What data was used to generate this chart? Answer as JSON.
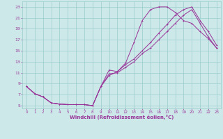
{
  "xlabel": "Windchill (Refroidissement éolien,°C)",
  "xlim": [
    -0.5,
    23.5
  ],
  "ylim": [
    4.5,
    24
  ],
  "xticks": [
    0,
    1,
    2,
    3,
    4,
    5,
    6,
    7,
    8,
    9,
    10,
    11,
    12,
    13,
    14,
    15,
    16,
    17,
    18,
    19,
    20,
    21,
    22,
    23
  ],
  "yticks": [
    5,
    7,
    9,
    11,
    13,
    15,
    17,
    19,
    21,
    23
  ],
  "bg_color": "#cce8e8",
  "grid_color": "#99cccc",
  "line_color": "#993399",
  "curve1_x": [
    0,
    1,
    2,
    3,
    4,
    5,
    6,
    7,
    8,
    9,
    10,
    11,
    12,
    13,
    14,
    15,
    16,
    17,
    18,
    19,
    20,
    21,
    22,
    23
  ],
  "curve1_y": [
    8.5,
    7.2,
    6.6,
    5.5,
    5.3,
    5.2,
    5.2,
    5.2,
    5.0,
    8.5,
    11.5,
    11.2,
    12.8,
    16.5,
    20.5,
    22.5,
    23.0,
    23.0,
    22.0,
    20.5,
    20.0,
    18.5,
    17.2,
    15.5
  ],
  "curve2_x": [
    0,
    1,
    2,
    3,
    4,
    5,
    6,
    7,
    8,
    9,
    10,
    11,
    12,
    13,
    14,
    15,
    16,
    17,
    18,
    19,
    20,
    21,
    22,
    23
  ],
  "curve2_y": [
    8.5,
    7.2,
    6.6,
    5.5,
    5.3,
    5.2,
    5.2,
    5.2,
    5.0,
    8.5,
    10.5,
    11.2,
    12.5,
    13.5,
    15.0,
    16.5,
    18.2,
    19.8,
    21.5,
    22.5,
    23.0,
    20.5,
    18.5,
    16.0
  ],
  "curve3_x": [
    0,
    1,
    2,
    3,
    4,
    5,
    6,
    7,
    8,
    9,
    10,
    11,
    12,
    13,
    14,
    15,
    16,
    17,
    18,
    19,
    20,
    21,
    22,
    23
  ],
  "curve3_y": [
    8.5,
    7.2,
    6.6,
    5.5,
    5.3,
    5.2,
    5.2,
    5.2,
    5.0,
    8.5,
    10.8,
    11.0,
    12.0,
    13.0,
    14.5,
    15.5,
    17.0,
    18.5,
    20.0,
    21.5,
    22.5,
    20.0,
    17.5,
    15.5
  ]
}
